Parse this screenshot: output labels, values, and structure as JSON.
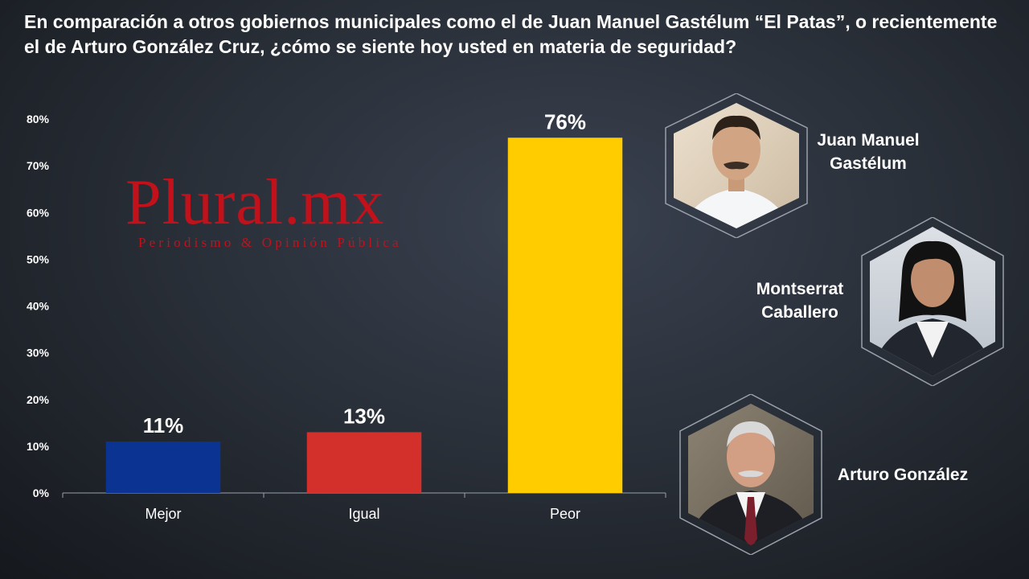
{
  "title": "En comparación a otros gobiernos municipales como el de Juan Manuel Gastélum “El Patas”, o recientemente el de Arturo González Cruz, ¿cómo se siente hoy usted en materia de seguridad?",
  "watermark": {
    "name": "Plural.mx",
    "tagline": "Periodismo & Opinión Pública"
  },
  "chart_data": {
    "type": "bar",
    "categories": [
      "Mejor",
      "Igual",
      "Peor"
    ],
    "values": [
      11,
      13,
      76
    ],
    "data_labels": [
      "11%",
      "13%",
      "76%"
    ],
    "colors": [
      "#0b3391",
      "#d3302c",
      "#ffcc00"
    ],
    "ylim": [
      0,
      80
    ],
    "yticks": [
      "0%",
      "10%",
      "20%",
      "30%",
      "40%",
      "50%",
      "60%",
      "70%",
      "80%"
    ],
    "grid": false
  },
  "people": [
    {
      "line1": "Juan Manuel",
      "line2": "Gastélum"
    },
    {
      "line1": "Montserrat",
      "line2": "Caballero"
    },
    {
      "line1": "Arturo González",
      "line2": ""
    }
  ]
}
